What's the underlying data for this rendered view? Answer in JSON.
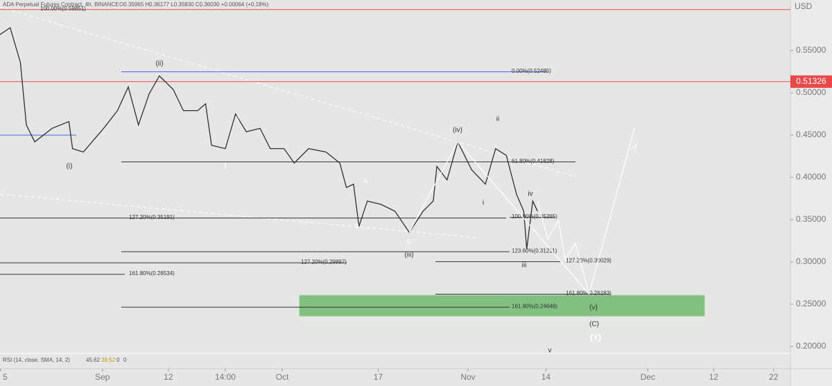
{
  "chart_data": {
    "type": "line",
    "title": "ADA Perpetual Futures Contract, 4h, BINANCE",
    "ohlc": "O0.35965 H0.36177 L0.35830 C0.36030 +0.00064 (+0.18%)",
    "currency": "USD",
    "rsi_label": "RSI (14, close, SMA, 14, 2)",
    "rsi_values": [
      "45.62",
      "39.52",
      "0",
      "0"
    ],
    "x": [
      -17.1,
      -15.4,
      -13.7,
      -12.7,
      -11.3,
      -8.4,
      -5.6,
      -5.0,
      -3.2,
      0.2,
      2.5,
      4.3,
      6.0,
      7.8,
      9.5,
      11.8,
      13.5,
      15.9,
      17.2,
      18.2,
      20.5,
      22.2,
      24.0,
      26.3,
      28.0,
      30.3,
      32.0,
      34.4,
      37.3,
      39.6,
      40.7,
      41.9,
      42.8,
      44.2,
      46.5,
      48.8,
      51.2,
      53.5,
      55.2,
      55.8,
      57.5,
      59.3,
      61.6,
      63.9,
      65.6,
      67.4,
      69.1,
      70.3,
      70.8,
      71.8,
      72.6
    ],
    "values": [
      0.569,
      0.577,
      0.536,
      0.462,
      0.442,
      0.458,
      0.466,
      0.434,
      0.43,
      0.458,
      0.479,
      0.507,
      0.462,
      0.499,
      0.52,
      0.504,
      0.479,
      0.479,
      0.487,
      0.438,
      0.434,
      0.475,
      0.454,
      0.458,
      0.434,
      0.434,
      0.417,
      0.434,
      0.43,
      0.417,
      0.388,
      0.392,
      0.342,
      0.372,
      0.368,
      0.36,
      0.335,
      0.36,
      0.372,
      0.413,
      0.397,
      0.442,
      0.409,
      0.392,
      0.434,
      0.426,
      0.38,
      0.36,
      0.315,
      0.372,
      0.36
    ],
    "color": "#2f2f2f",
    "projection": {
      "color": "#ffffff",
      "x": [
        51.2,
        59.3,
        81.2,
        null,
        72.6,
        74.3,
        76.1,
        77.2,
        78.9,
        81.2,
        88.8
      ],
      "values": [
        0.335,
        0.442,
        0.262,
        null,
        0.372,
        0.327,
        0.349,
        0.303,
        0.322,
        0.262,
        0.459
      ]
    },
    "xlim": [
      -17.1,
      114.8
    ],
    "ylim": [
      0.1918,
      0.6098
    ],
    "xticks": [
      {
        "value": -17,
        "label": "5"
      },
      {
        "value": 0,
        "label": "Sep"
      },
      {
        "value": 11,
        "label": "12"
      },
      {
        "value": 20.5,
        "label": "14:00"
      },
      {
        "value": 30,
        "label": "Oct"
      },
      {
        "value": 46,
        "label": "17"
      },
      {
        "value": 61,
        "label": "Nov"
      },
      {
        "value": 74,
        "label": "14"
      },
      {
        "value": 91,
        "label": "Dec"
      },
      {
        "value": 102,
        "label": "12"
      },
      {
        "value": 112,
        "label": "22"
      }
    ],
    "yticks": [
      {
        "value": 0.2,
        "label": "0.20000"
      },
      {
        "value": 0.25,
        "label": "0.25000"
      },
      {
        "value": 0.3,
        "label": "0.30000"
      },
      {
        "value": 0.35,
        "label": "0.35000"
      },
      {
        "value": 0.4,
        "label": "0.40000"
      },
      {
        "value": 0.45,
        "label": "0.45000"
      },
      {
        "value": 0.5,
        "label": "0.50000"
      },
      {
        "value": 0.55,
        "label": "0.55000"
      }
    ],
    "price_tag": 0.51326,
    "levels": [
      {
        "value": 0.59851,
        "label": "100.00%(0.59851)",
        "color": "#e05050"
      },
      {
        "value": 0.52485,
        "label": "0.00%(0.52485)",
        "color": "#4466dd"
      },
      {
        "value": 0.41828,
        "label": "61.80%(0.41828)",
        "color": "#333333"
      },
      {
        "value": 0.35191,
        "label": "127.20%(0.35191)",
        "color": "#333333"
      },
      {
        "value": 0.35265,
        "label": "100.00%(0.35265)",
        "color": "#333333"
      },
      {
        "value": 0.31211,
        "label": "123.60%(0.31211)",
        "color": "#333333"
      },
      {
        "value": 0.29897,
        "label": "127.20%(0.29897)",
        "color": "#333333"
      },
      {
        "value": 0.30029,
        "label": "127.20%(0.30029)",
        "color": "#333333"
      },
      {
        "value": 0.28534,
        "label": "161.80%(0.28534)",
        "color": "#333333"
      },
      {
        "value": 0.26183,
        "label": "161.80%(0.26183)",
        "color": "#333333"
      },
      {
        "value": 0.24648,
        "label": "161.80%(0.24648)",
        "color": "#333333"
      }
    ],
    "zone": [
      0.236,
      0.2605
    ],
    "waves": [
      "(ii)",
      "(i)",
      "1",
      "2",
      "4",
      "3",
      "5",
      "(iii)",
      "(iv)",
      "ii",
      "i",
      "iv",
      "iii",
      "(v)",
      "(C)",
      "(Y)",
      "v"
    ]
  }
}
